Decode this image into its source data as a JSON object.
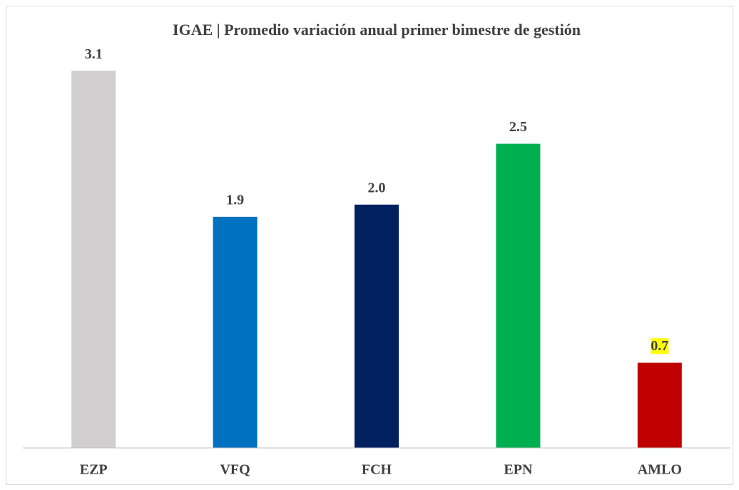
{
  "chart_data": {
    "type": "bar",
    "title": "IGAE | Promedio variación anual primer bimestre de gestión",
    "categories": [
      "EZP",
      "VFQ",
      "FCH",
      "EPN",
      "AMLO"
    ],
    "values": [
      3.1,
      1.9,
      2.0,
      2.5,
      0.7
    ],
    "value_labels": [
      "3.1",
      "1.9",
      "2.0",
      "2.5",
      "0.7"
    ],
    "colors": [
      "#d0cece",
      "#0070c0",
      "#002060",
      "#00b050",
      "#c00000"
    ],
    "label_backgrounds": [
      null,
      null,
      null,
      null,
      "#ffff00"
    ],
    "ylim": [
      0,
      3.5
    ],
    "grid": false
  }
}
